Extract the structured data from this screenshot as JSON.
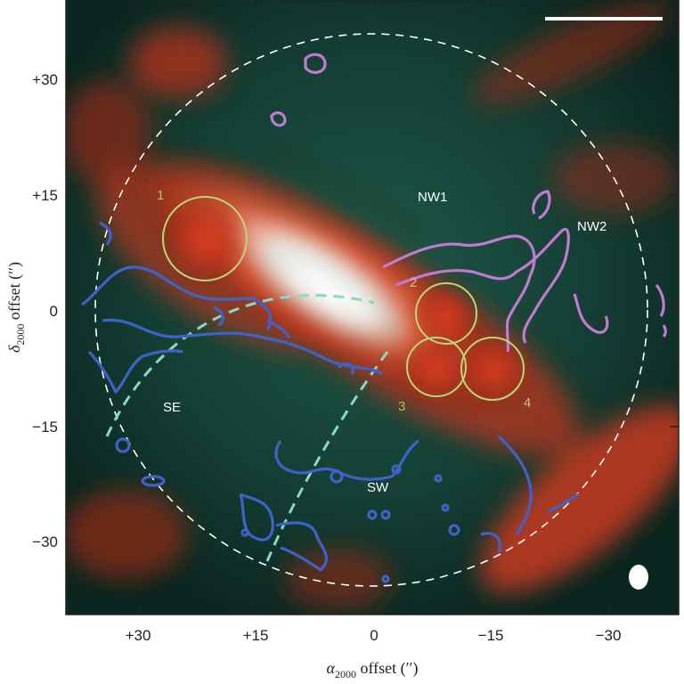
{
  "figure": {
    "x_axis": {
      "title_symbol": "α",
      "title_subscript": "2000",
      "title_rest": " offset (′′)",
      "tick_labels": [
        "+30",
        "+15",
        "0",
        "−15",
        "−30"
      ]
    },
    "y_axis": {
      "title_symbol": "δ",
      "title_subscript": "2000",
      "title_rest": " offset (′′)",
      "tick_labels": [
        "+30",
        "+15",
        "0",
        "−15",
        "−30"
      ]
    },
    "region_labels": [
      "NW1",
      "NW2",
      "SE",
      "SW"
    ],
    "aperture_labels": [
      "1",
      "2",
      "3",
      "4"
    ],
    "colors": {
      "background": "#0e2a22",
      "galaxy_core": "#ffffff",
      "galaxy_red": "#d63a1e",
      "blue_contours": "#3e63c8",
      "violet_contours": "#c07ad0",
      "apertures": "#b8d87a",
      "dashed_circle": "#ffffff",
      "dashed_arc": "#88d8cc"
    }
  }
}
